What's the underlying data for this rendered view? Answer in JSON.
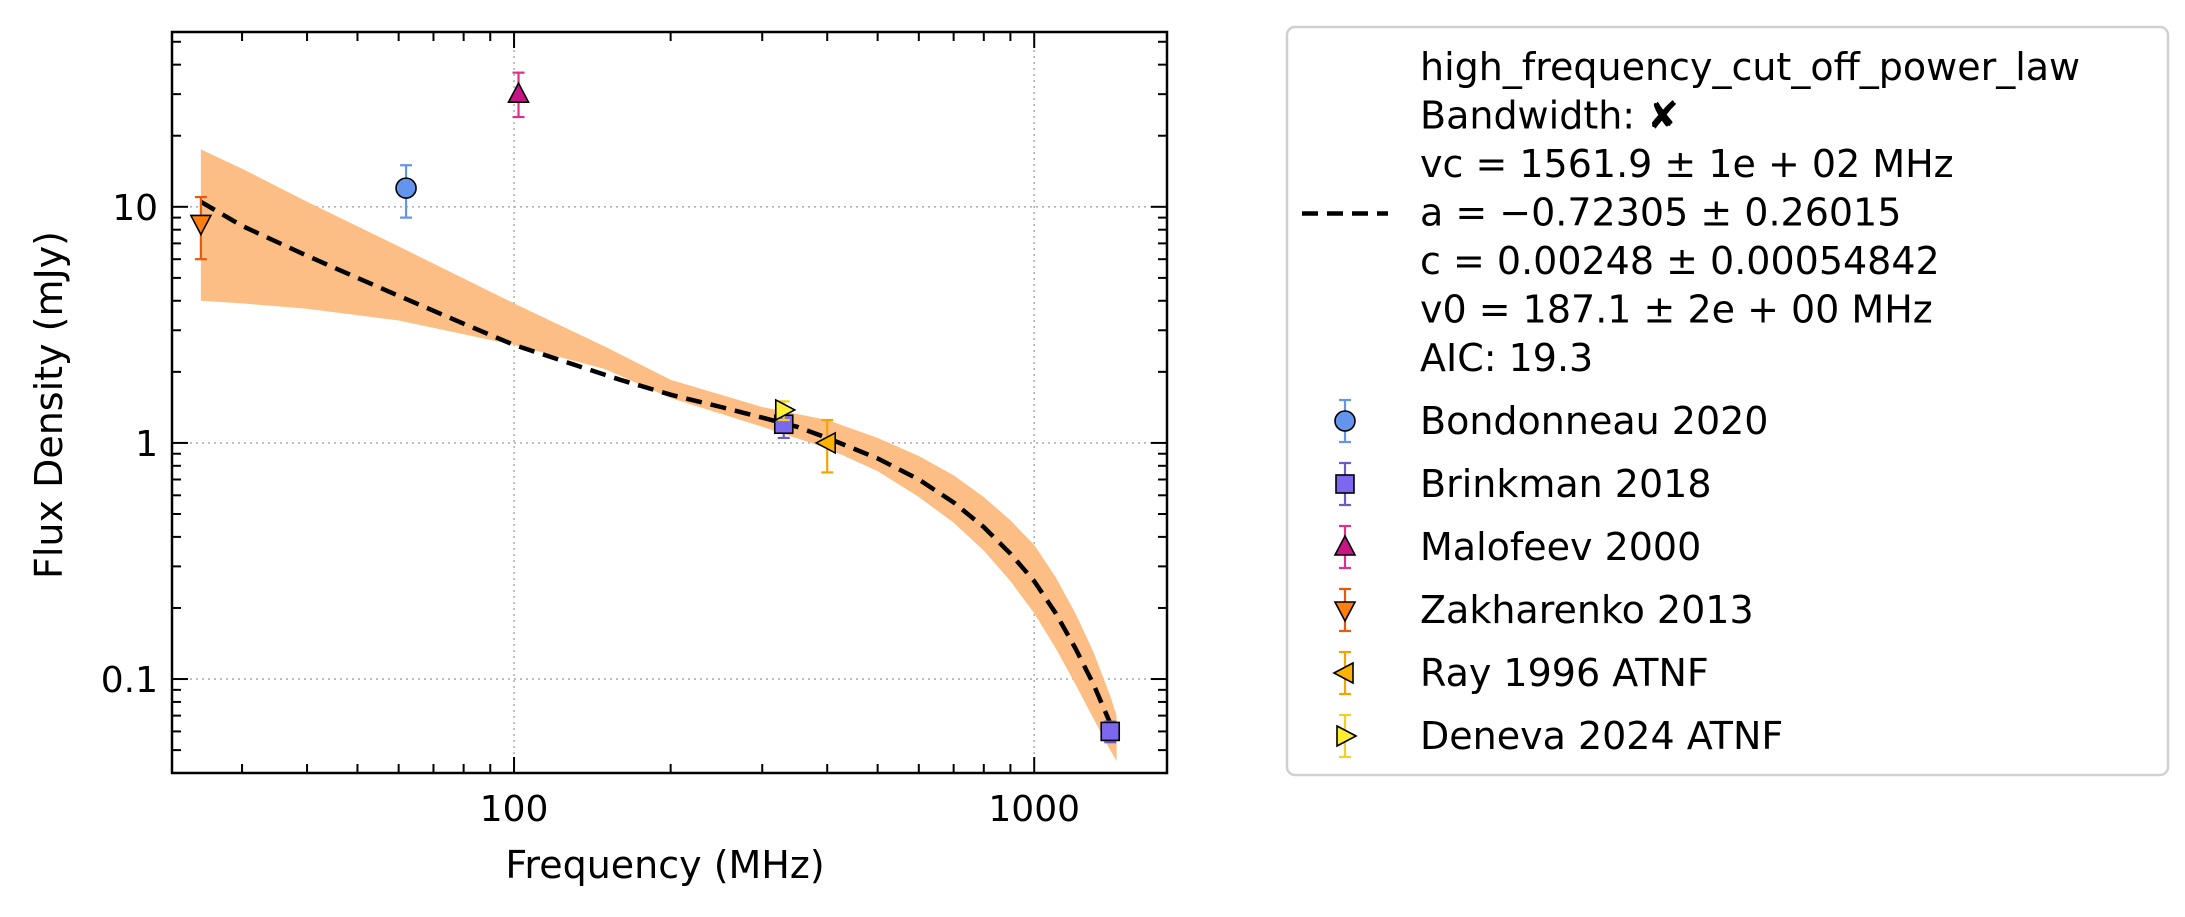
{
  "chart_data": {
    "type": "scatter",
    "xlabel": "Frequency (MHz)",
    "ylabel": "Flux Density (mJy)",
    "x_scale": "log",
    "y_scale": "log",
    "xlim": [
      22,
      1800
    ],
    "ylim": [
      0.04,
      55
    ],
    "x_ticks": [
      {
        "value": 100,
        "label": "100"
      },
      {
        "value": 1000,
        "label": "1000"
      }
    ],
    "y_ticks": [
      {
        "value": 0.1,
        "label": "0.1"
      },
      {
        "value": 1,
        "label": "1"
      },
      {
        "value": 10,
        "label": "10"
      }
    ],
    "grid": true,
    "legend_position": "outside right",
    "fit": {
      "name": "high_frequency_cut_off_power_law",
      "color": "#000000",
      "band_color": "#fdbe85",
      "info_lines": [
        "Bandwidth: ✘",
        "vc = 1561.9 ± 1e + 02 MHz",
        "a = −0.72305 ± 0.26015",
        "c = 0.00248 ± 0.00054842",
        "v0 = 187.1 ± 2e + 00 MHz",
        "AIC: 19.3"
      ],
      "curve": [
        [
          25,
          10.5
        ],
        [
          30,
          8.3
        ],
        [
          40,
          6.2
        ],
        [
          50,
          5.0
        ],
        [
          60,
          4.2
        ],
        [
          80,
          3.2
        ],
        [
          100,
          2.6
        ],
        [
          130,
          2.15
        ],
        [
          160,
          1.85
        ],
        [
          200,
          1.6
        ],
        [
          250,
          1.42
        ],
        [
          300,
          1.28
        ],
        [
          350,
          1.17
        ],
        [
          400,
          1.05
        ],
        [
          500,
          0.86
        ],
        [
          600,
          0.7
        ],
        [
          700,
          0.56
        ],
        [
          800,
          0.44
        ],
        [
          900,
          0.34
        ],
        [
          1000,
          0.26
        ],
        [
          1100,
          0.19
        ],
        [
          1200,
          0.135
        ],
        [
          1300,
          0.095
        ],
        [
          1400,
          0.065
        ],
        [
          1440,
          0.057
        ]
      ],
      "band": [
        [
          25,
          4.0,
          17.5
        ],
        [
          30,
          3.9,
          14.5
        ],
        [
          40,
          3.7,
          10.5
        ],
        [
          60,
          3.3,
          6.8
        ],
        [
          100,
          2.6,
          3.9
        ],
        [
          150,
          2.05,
          2.55
        ],
        [
          200,
          1.55,
          1.85
        ],
        [
          300,
          1.17,
          1.42
        ],
        [
          400,
          0.95,
          1.25
        ],
        [
          500,
          0.76,
          1.05
        ],
        [
          600,
          0.59,
          0.88
        ],
        [
          700,
          0.46,
          0.73
        ],
        [
          800,
          0.35,
          0.59
        ],
        [
          900,
          0.26,
          0.47
        ],
        [
          1000,
          0.19,
          0.37
        ],
        [
          1100,
          0.135,
          0.27
        ],
        [
          1200,
          0.095,
          0.19
        ],
        [
          1300,
          0.068,
          0.13
        ],
        [
          1400,
          0.05,
          0.085
        ],
        [
          1440,
          0.045,
          0.07
        ]
      ]
    },
    "series": [
      {
        "name": "Bondonneau 2020",
        "marker": "circle",
        "color": "#6495ed",
        "edge_color": "#6495ed",
        "points": [
          {
            "x": 62,
            "y": 12,
            "ylo": 9,
            "yhi": 15
          }
        ]
      },
      {
        "name": "Brinkman 2018",
        "marker": "square",
        "color": "#7b68ee",
        "edge_color": "#6a5acd",
        "points": [
          {
            "x": 330,
            "y": 1.2,
            "ylo": 1.05,
            "yhi": 1.38
          },
          {
            "x": 1400,
            "y": 0.06,
            "ylo": 0.054,
            "yhi": 0.066
          }
        ]
      },
      {
        "name": "Malofeev 2000",
        "marker": "triangle-up",
        "color": "#c71585",
        "edge_color": "#e0308a",
        "points": [
          {
            "x": 102,
            "y": 30,
            "ylo": 24,
            "yhi": 37
          }
        ]
      },
      {
        "name": "Zakharenko 2013",
        "marker": "triangle-down",
        "color": "#ff7f0e",
        "edge_color": "#e8590c",
        "points": [
          {
            "x": 25,
            "y": 8.5,
            "ylo": 6,
            "yhi": 11
          }
        ]
      },
      {
        "name": "Ray 1996 ATNF",
        "marker": "triangle-left",
        "color": "#ffb300",
        "edge_color": "#f4a300",
        "points": [
          {
            "x": 400,
            "y": 1.0,
            "ylo": 0.75,
            "yhi": 1.25
          }
        ]
      },
      {
        "name": "Deneva 2024 ATNF",
        "marker": "triangle-right",
        "color": "#ffee33",
        "edge_color": "#f0d020",
        "points": [
          {
            "x": 330,
            "y": 1.38,
            "ylo": 1.25,
            "yhi": 1.5
          }
        ]
      }
    ]
  }
}
